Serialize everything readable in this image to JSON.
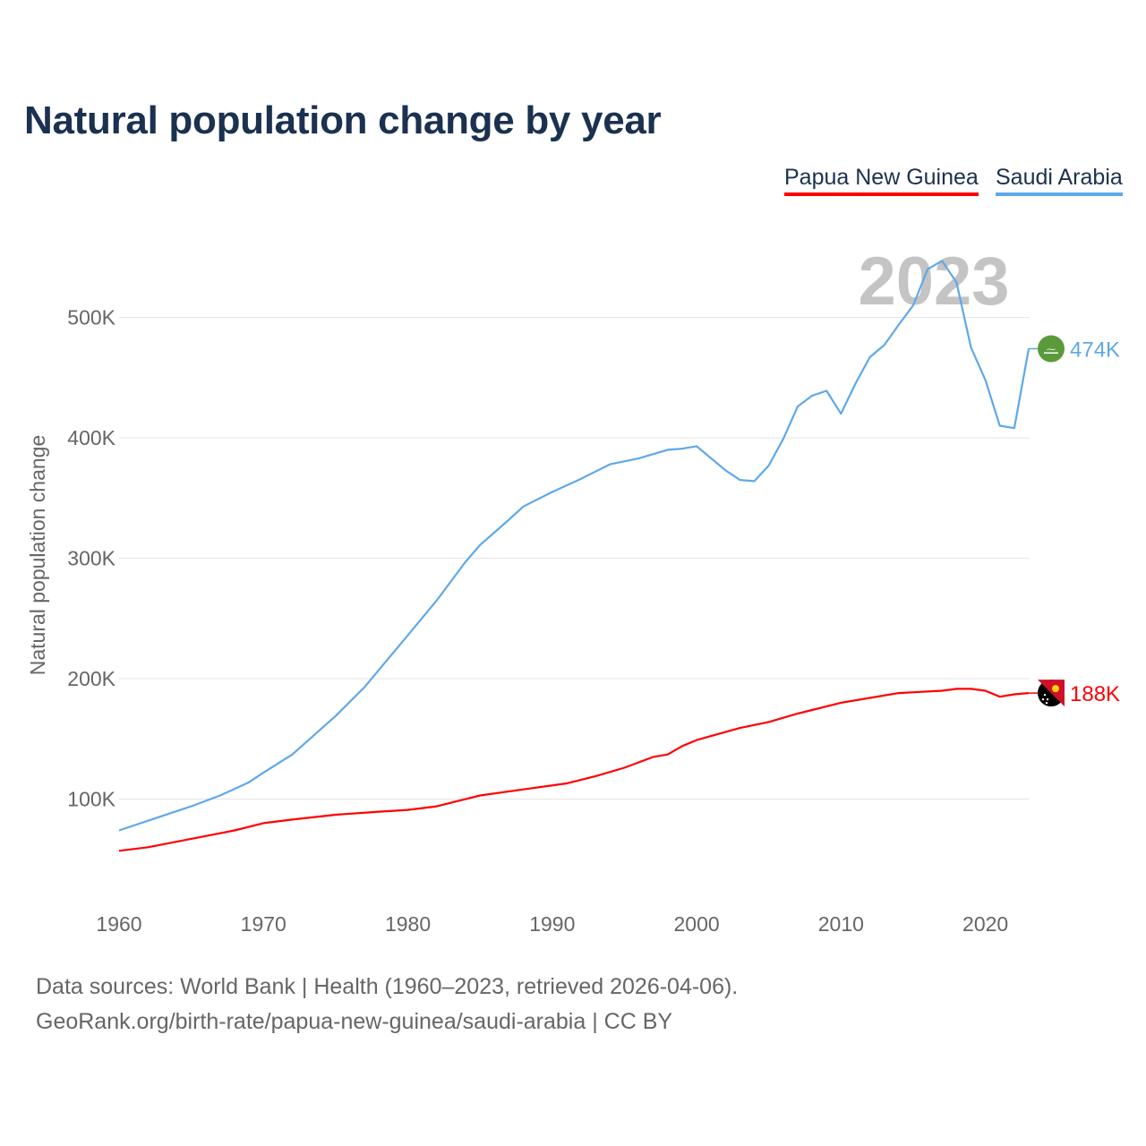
{
  "chart_data": {
    "type": "line",
    "title": "Natural population change by year",
    "xlabel": "",
    "ylabel": "Natural population change",
    "xlim": [
      1960,
      2023
    ],
    "ylim": [
      0,
      560000
    ],
    "x_ticks": [
      1960,
      1970,
      1980,
      1990,
      2000,
      2010,
      2020
    ],
    "y_ticks": [
      100000,
      200000,
      300000,
      400000,
      500000
    ],
    "y_tick_labels": [
      "100K",
      "200K",
      "300K",
      "400K",
      "500K"
    ],
    "x_tick_labels": [
      "1960",
      "1970",
      "1980",
      "1990",
      "2000",
      "2010",
      "2020"
    ],
    "grid": true,
    "legend_position": "top-right",
    "year_annotation": "2023",
    "series": [
      {
        "name": "Papua New Guinea",
        "color": "#ff0000",
        "end_label": "188K",
        "flag_icon": "papua-new-guinea-flag",
        "points": [
          [
            1960,
            57000
          ],
          [
            1962,
            60000
          ],
          [
            1965,
            67000
          ],
          [
            1968,
            74000
          ],
          [
            1970,
            80000
          ],
          [
            1972,
            83000
          ],
          [
            1975,
            87000
          ],
          [
            1978,
            89500
          ],
          [
            1980,
            91000
          ],
          [
            1982,
            94000
          ],
          [
            1985,
            103000
          ],
          [
            1988,
            108000
          ],
          [
            1991,
            113000
          ],
          [
            1993,
            119000
          ],
          [
            1995,
            126000
          ],
          [
            1997,
            135000
          ],
          [
            1998,
            137000
          ],
          [
            1999,
            144000
          ],
          [
            2000,
            149000
          ],
          [
            2003,
            159000
          ],
          [
            2005,
            164000
          ],
          [
            2007,
            171000
          ],
          [
            2008,
            174000
          ],
          [
            2010,
            180000
          ],
          [
            2012,
            184000
          ],
          [
            2014,
            188000
          ],
          [
            2017,
            190000
          ],
          [
            2018,
            191500
          ],
          [
            2019,
            191500
          ],
          [
            2020,
            190000
          ],
          [
            2021,
            185000
          ],
          [
            2022,
            187000
          ],
          [
            2023,
            188000
          ]
        ]
      },
      {
        "name": "Saudi Arabia",
        "color": "#5ea8ea",
        "end_label": "474K",
        "flag_icon": "saudi-arabia-flag",
        "points": [
          [
            1960,
            74000
          ],
          [
            1962,
            82000
          ],
          [
            1965,
            94000
          ],
          [
            1967,
            103000
          ],
          [
            1969,
            114000
          ],
          [
            1970,
            122000
          ],
          [
            1972,
            137000
          ],
          [
            1975,
            169000
          ],
          [
            1977,
            193000
          ],
          [
            1980,
            236000
          ],
          [
            1982,
            265000
          ],
          [
            1984,
            297000
          ],
          [
            1985,
            311000
          ],
          [
            1987,
            332000
          ],
          [
            1988,
            343000
          ],
          [
            1990,
            355000
          ],
          [
            1992,
            366000
          ],
          [
            1994,
            378000
          ],
          [
            1996,
            383000
          ],
          [
            1998,
            390000
          ],
          [
            1999,
            391000
          ],
          [
            2000,
            393000
          ],
          [
            2002,
            373000
          ],
          [
            2003,
            365000
          ],
          [
            2004,
            364000
          ],
          [
            2005,
            377000
          ],
          [
            2006,
            399000
          ],
          [
            2007,
            426000
          ],
          [
            2008,
            435000
          ],
          [
            2009,
            439000
          ],
          [
            2010,
            420000
          ],
          [
            2011,
            445000
          ],
          [
            2012,
            467000
          ],
          [
            2013,
            477000
          ],
          [
            2014,
            494000
          ],
          [
            2015,
            510000
          ],
          [
            2016,
            540000
          ],
          [
            2017,
            547000
          ],
          [
            2018,
            529000
          ],
          [
            2019,
            475000
          ],
          [
            2020,
            448000
          ],
          [
            2021,
            410000
          ],
          [
            2022,
            408000
          ],
          [
            2023,
            474000
          ]
        ]
      }
    ]
  },
  "footer": {
    "line1": "Data sources: World Bank | Health (1960–2023, retrieved 2026-04-06).",
    "line2": "GeoRank.org/birth-rate/papua-new-guinea/saudi-arabia | CC BY"
  }
}
